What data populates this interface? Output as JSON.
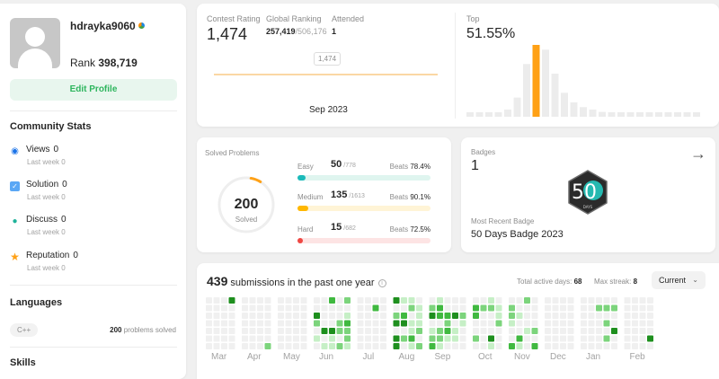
{
  "profile": {
    "username": "hdrayka9060",
    "rank_label": "Rank",
    "rank_value": "398,719",
    "edit_label": "Edit Profile"
  },
  "community": {
    "title": "Community Stats",
    "items": [
      {
        "label": "Views",
        "value": "0",
        "sub": "Last week",
        "sub_value": "0",
        "icon": "eye-icon",
        "color": "#1a73e8"
      },
      {
        "label": "Solution",
        "value": "0",
        "sub": "Last week",
        "sub_value": "0",
        "icon": "solution-icon",
        "color": "#5aa7f5"
      },
      {
        "label": "Discuss",
        "value": "0",
        "sub": "Last week",
        "sub_value": "0",
        "icon": "discuss-icon",
        "color": "#1fb39a"
      },
      {
        "label": "Reputation",
        "value": "0",
        "sub": "Last week",
        "sub_value": "0",
        "icon": "star-icon",
        "color": "#ffa116"
      }
    ]
  },
  "languages": {
    "title": "Languages",
    "name": "C++",
    "count": "200",
    "suffix": "problems solved"
  },
  "skills": {
    "title": "Skills"
  },
  "contest": {
    "rating_label": "Contest Rating",
    "rating": "1,474",
    "global_label": "Global Ranking",
    "global_rank": "257,419",
    "global_total": "/506,176",
    "attended_label": "Attended",
    "attended": "1",
    "tooltip": "1,474",
    "date": "Sep 2023",
    "top_label": "Top",
    "top_value": "51.55%"
  },
  "solved": {
    "title": "Solved Problems",
    "total": "200",
    "total_label": "Solved",
    "ring_fraction": 0.06,
    "easy": {
      "label": "Easy",
      "count": "50",
      "total": "/778",
      "beats_label": "Beats",
      "beats": "78.4%",
      "fraction": 0.064,
      "color": "#1cbaba",
      "track": "#dff5ef"
    },
    "medium": {
      "label": "Medium",
      "count": "135",
      "total": "/1613",
      "beats_label": "Beats",
      "beats": "90.1%",
      "fraction": 0.084,
      "color": "#ffb700",
      "track": "#fff4d6"
    },
    "hard": {
      "label": "Hard",
      "count": "15",
      "total": "/682",
      "beats_label": "Beats",
      "beats": "72.5%",
      "fraction": 0.022,
      "color": "#ef4743",
      "track": "#fde4e4"
    }
  },
  "badges": {
    "label": "Badges",
    "count": "1",
    "recent_label": "Most Recent Badge",
    "recent_name": "50 Days Badge 2023",
    "badge_text": "50",
    "badge_sub": "DAYS"
  },
  "submissions": {
    "count": "439",
    "text": "submissions in the past one year",
    "active_label": "Total active days:",
    "active_value": "68",
    "streak_label": "Max streak:",
    "streak_value": "8",
    "select_value": "Current",
    "months": [
      "Mar",
      "Apr",
      "May",
      "Jun",
      "Jul",
      "Aug",
      "Sep",
      "Oct",
      "Nov",
      "Dec",
      "Jan",
      "Feb"
    ]
  }
}
